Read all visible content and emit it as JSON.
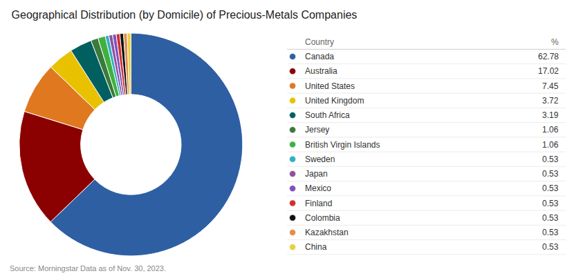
{
  "chart_data": {
    "type": "pie",
    "title": "Geographical Distribution (by Domicile) of Precious-Metals Companies",
    "source": "Source: Morningstar Data as of Nov. 30, 2023.",
    "columns": [
      "Country",
      "%"
    ],
    "categories": [
      "Canada",
      "Australia",
      "United States",
      "United Kingdom",
      "South Africa",
      "Jersey",
      "British Virgin Islands",
      "Sweden",
      "Japan",
      "Mexico",
      "Finland",
      "Colombia",
      "Kazakhstan",
      "China"
    ],
    "values": [
      62.78,
      17.02,
      7.45,
      3.72,
      3.19,
      1.06,
      1.06,
      0.53,
      0.53,
      0.53,
      0.53,
      0.53,
      0.53,
      0.53
    ],
    "colors": [
      "#2E5FA3",
      "#8B0000",
      "#E07820",
      "#E8C200",
      "#006060",
      "#3A7A3A",
      "#40B040",
      "#30B0C0",
      "#9050A0",
      "#8050C0",
      "#D03030",
      "#111111",
      "#E09050",
      "#E8D040"
    ],
    "data_labels": true
  }
}
